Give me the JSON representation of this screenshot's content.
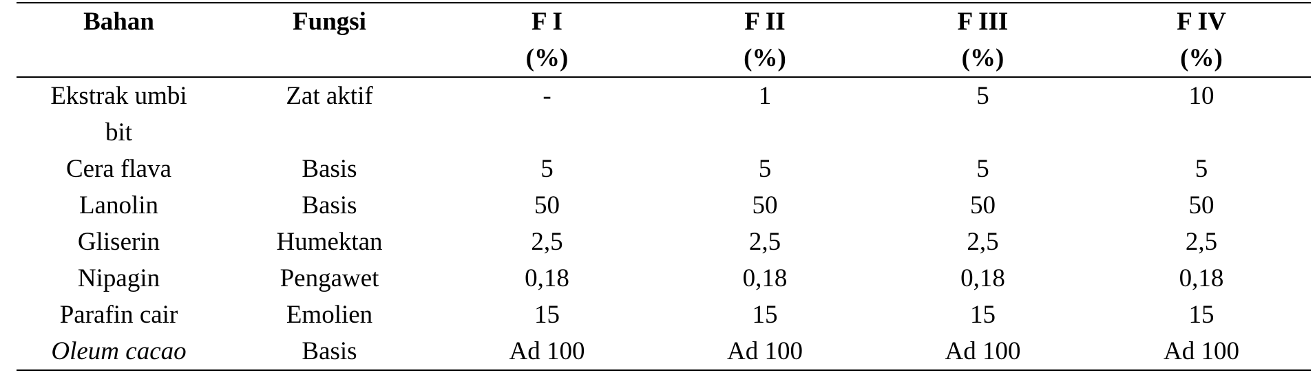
{
  "table": {
    "header": [
      [
        "Bahan"
      ],
      [
        "Fungsi"
      ],
      [
        "F I",
        "(%)"
      ],
      [
        "F II",
        "(%)"
      ],
      [
        "F III",
        "(%)"
      ],
      [
        "F IV",
        "(%)"
      ]
    ],
    "rows": [
      [
        "Ekstrak umbi bit",
        "Zat aktif",
        "-",
        "1",
        "5",
        "10"
      ],
      [
        "Cera flava",
        "Basis",
        "5",
        "5",
        "5",
        "5"
      ],
      [
        "Lanolin",
        "Basis",
        "50",
        "50",
        "50",
        "50"
      ],
      [
        "Gliserin",
        "Humektan",
        "2,5",
        "2,5",
        "2,5",
        "2,5"
      ],
      [
        "Nipagin",
        "Pengawet",
        "0,18",
        "0,18",
        "0,18",
        "0,18"
      ],
      [
        "Parafin cair",
        "Emolien",
        "15",
        "15",
        "15",
        "15"
      ],
      [
        "Oleum cacao",
        "Basis",
        "Ad 100",
        "Ad 100",
        "Ad 100",
        "Ad 100"
      ]
    ]
  }
}
